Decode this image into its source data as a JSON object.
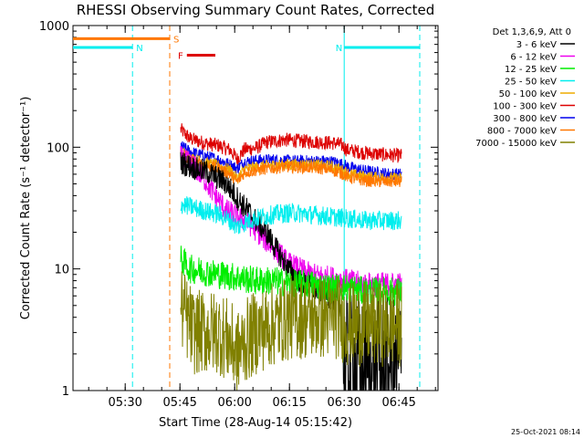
{
  "chart_data": {
    "type": "line",
    "title": "RHESSI Observing Summary Count Rates, Corrected",
    "xlabel": "Start Time (28-Aug-14 05:15:42)",
    "ylabel": "Corrected Count Rate (s⁻¹ detector⁻¹)",
    "yscale": "log",
    "ylim": [
      1,
      1000
    ],
    "xlim_minutes": [
      0,
      100
    ],
    "x_ticks": [
      {
        "label": "05:30",
        "t": 14.3
      },
      {
        "label": "05:45",
        "t": 29.3
      },
      {
        "label": "06:00",
        "t": 44.3
      },
      {
        "label": "06:15",
        "t": 59.3
      },
      {
        "label": "06:30",
        "t": 74.3
      },
      {
        "label": "06:45",
        "t": 89.3
      }
    ],
    "y_ticks": [
      {
        "label": "1",
        "v": 1
      },
      {
        "label": "10",
        "v": 10
      },
      {
        "label": "100",
        "v": 100
      },
      {
        "label": "1000",
        "v": 1000
      }
    ],
    "legend": {
      "position": "right",
      "header": "Det 1,3,6,9, Att 0",
      "entries": [
        {
          "label": "3 - 6 keV",
          "color": "#000000"
        },
        {
          "label": "6 - 12 keV",
          "color": "#ee00ee"
        },
        {
          "label": "12 - 25 keV",
          "color": "#00ee00"
        },
        {
          "label": "25 - 50 keV",
          "color": "#00eeee"
        },
        {
          "label": "50 - 100 keV",
          "color": "#eeaa00"
        },
        {
          "label": "100 - 300 keV",
          "color": "#dd0000"
        },
        {
          "label": "300 - 800 keV",
          "color": "#0000ee"
        },
        {
          "label": "800 - 7000 keV",
          "color": "#ff7700"
        },
        {
          "label": "7000 - 15000 keV",
          "color": "#808000"
        }
      ]
    },
    "series": [
      {
        "color": "#dd0000",
        "noise": 0.06,
        "points": [
          [
            29.5,
            140
          ],
          [
            32,
            118
          ],
          [
            36,
            108
          ],
          [
            40,
            103
          ],
          [
            43,
            95
          ],
          [
            45,
            80
          ],
          [
            47,
            96
          ],
          [
            50,
            98
          ],
          [
            53,
            110
          ],
          [
            58,
            115
          ],
          [
            63,
            112
          ],
          [
            68,
            110
          ],
          [
            72,
            108
          ],
          [
            74,
            103
          ],
          [
            75,
            95
          ],
          [
            80,
            90
          ],
          [
            85,
            87
          ],
          [
            90,
            85
          ]
        ]
      },
      {
        "color": "#0000ee",
        "noise": 0.05,
        "points": [
          [
            29.5,
            103
          ],
          [
            32,
            92
          ],
          [
            36,
            85
          ],
          [
            40,
            79
          ],
          [
            43,
            72
          ],
          [
            45,
            67
          ],
          [
            47,
            76
          ],
          [
            50,
            78
          ],
          [
            55,
            79
          ],
          [
            60,
            77
          ],
          [
            65,
            77
          ],
          [
            70,
            77
          ],
          [
            73,
            74
          ],
          [
            76,
            68
          ],
          [
            80,
            64
          ],
          [
            85,
            61
          ],
          [
            90,
            60
          ]
        ]
      },
      {
        "color": "#eeaa00",
        "noise": 0.05,
        "points": [
          [
            29.5,
            92
          ],
          [
            32,
            82
          ],
          [
            36,
            75
          ],
          [
            40,
            70
          ],
          [
            43,
            65
          ],
          [
            45,
            55
          ],
          [
            47,
            66
          ],
          [
            52,
            70
          ],
          [
            58,
            72
          ],
          [
            65,
            72
          ],
          [
            70,
            70
          ],
          [
            73,
            66
          ],
          [
            76,
            60
          ],
          [
            80,
            57
          ],
          [
            85,
            56
          ],
          [
            90,
            55
          ]
        ]
      },
      {
        "color": "#ff7700",
        "noise": 0.05,
        "points": [
          [
            29.5,
            88
          ],
          [
            32,
            78
          ],
          [
            36,
            71
          ],
          [
            40,
            67
          ],
          [
            43,
            60
          ],
          [
            45,
            52
          ],
          [
            47,
            62
          ],
          [
            52,
            66
          ],
          [
            58,
            69
          ],
          [
            65,
            68
          ],
          [
            70,
            66
          ],
          [
            73,
            62
          ],
          [
            76,
            56
          ],
          [
            80,
            53
          ],
          [
            85,
            52
          ],
          [
            90,
            52
          ]
        ]
      },
      {
        "color": "#ee00ee",
        "noise": 0.1,
        "points": [
          [
            29.5,
            82
          ],
          [
            33,
            70
          ],
          [
            36,
            55
          ],
          [
            39,
            40
          ],
          [
            42,
            30
          ],
          [
            45,
            27
          ],
          [
            48,
            24
          ],
          [
            50,
            21
          ],
          [
            53,
            17
          ],
          [
            56,
            14
          ],
          [
            59,
            11
          ],
          [
            62,
            10
          ],
          [
            65,
            9
          ],
          [
            70,
            8.5
          ],
          [
            75,
            8
          ],
          [
            80,
            7.5
          ],
          [
            85,
            7.5
          ],
          [
            90,
            7.5
          ]
        ]
      },
      {
        "color": "#000000",
        "noise": 0.1,
        "points": [
          [
            29.5,
            75
          ],
          [
            33,
            68
          ],
          [
            37,
            62
          ],
          [
            40,
            55
          ],
          [
            42,
            50
          ],
          [
            44,
            42
          ],
          [
            46,
            35
          ],
          [
            48,
            30
          ],
          [
            50,
            25
          ],
          [
            53,
            20
          ],
          [
            56,
            14
          ],
          [
            59,
            10
          ],
          [
            62,
            8
          ],
          [
            65,
            7
          ],
          [
            68,
            6.5
          ],
          [
            70,
            6
          ],
          [
            72,
            5.5
          ],
          [
            73.5,
            5
          ]
        ]
      },
      {
        "color": "#000000",
        "noise": 0.6,
        "points": [
          [
            74,
            1.6
          ],
          [
            80,
            1.5
          ],
          [
            85,
            1.5
          ],
          [
            90,
            1.5
          ]
        ]
      },
      {
        "color": "#00eeee",
        "noise": 0.08,
        "points": [
          [
            29.5,
            34
          ],
          [
            33,
            32
          ],
          [
            36,
            30
          ],
          [
            40,
            28
          ],
          [
            43,
            25
          ],
          [
            45,
            22
          ],
          [
            47,
            24
          ],
          [
            50,
            26
          ],
          [
            55,
            28
          ],
          [
            60,
            29
          ],
          [
            65,
            28
          ],
          [
            70,
            27
          ],
          [
            75,
            26
          ],
          [
            80,
            25
          ],
          [
            85,
            25
          ],
          [
            90,
            25
          ]
        ]
      },
      {
        "color": "#00ee00",
        "noise": 0.12,
        "points": [
          [
            29.5,
            12
          ],
          [
            32,
            10
          ],
          [
            36,
            9.5
          ],
          [
            40,
            9
          ],
          [
            45,
            8.5
          ],
          [
            50,
            8
          ],
          [
            55,
            8
          ],
          [
            60,
            7.5
          ],
          [
            65,
            7.5
          ],
          [
            70,
            7
          ],
          [
            75,
            7
          ],
          [
            80,
            6.5
          ],
          [
            85,
            6.5
          ],
          [
            90,
            6.5
          ]
        ]
      },
      {
        "color": "#808000",
        "noise": 0.35,
        "points": [
          [
            29.5,
            5
          ],
          [
            31,
            4
          ],
          [
            33,
            3
          ],
          [
            36,
            3
          ],
          [
            40,
            3
          ],
          [
            43,
            2.5
          ],
          [
            45,
            2
          ],
          [
            47,
            2.5
          ],
          [
            50,
            3
          ],
          [
            55,
            3.5
          ],
          [
            60,
            4
          ],
          [
            65,
            4
          ],
          [
            70,
            4
          ],
          [
            73,
            4
          ],
          [
            75,
            3.5
          ],
          [
            80,
            3.5
          ],
          [
            85,
            3.5
          ],
          [
            90,
            3.5
          ]
        ]
      }
    ],
    "horizontal_bars": [
      {
        "label": "S",
        "color": "#ff7700",
        "t_start": 0,
        "t_end": 26.5,
        "v": 780
      },
      {
        "label": "N",
        "color": "#00eeee",
        "t_start": 0,
        "t_end": 16.3,
        "v": 660
      },
      {
        "label": "N",
        "color": "#00eeee",
        "t_start": 74.3,
        "t_end": 95,
        "v": 660
      },
      {
        "label": "F",
        "color": "#dd0000",
        "t_start": 31.2,
        "t_end": 39,
        "v": 570
      }
    ],
    "vertical_lines": [
      {
        "t": 0,
        "color": "#00eeee",
        "style": "solid"
      },
      {
        "t": 16.3,
        "color": "#00eeee",
        "style": "dashed"
      },
      {
        "t": 26.5,
        "color": "#ff7700",
        "style": "dashed"
      },
      {
        "t": 74.3,
        "color": "#00eeee",
        "style": "solid"
      },
      {
        "t": 95,
        "color": "#00eeee",
        "style": "dashed"
      }
    ]
  },
  "footer_date": "25-Oct-2021 08:14"
}
